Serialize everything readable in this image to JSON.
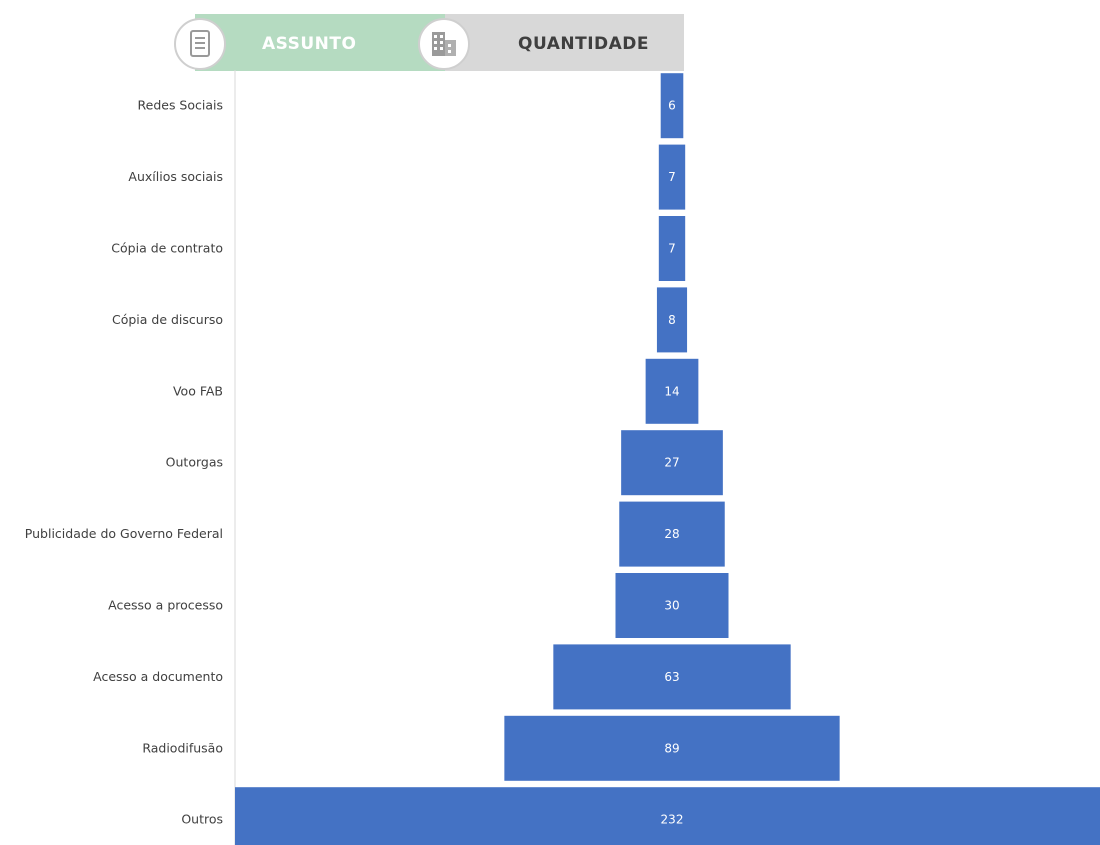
{
  "header": {
    "assunto_label": "ASSUNTO",
    "quantidade_label": "QUANTIDADE",
    "assunto_icon": "document-icon",
    "quantidade_icon": "building-icon",
    "assunto_color": "#b5dbc1",
    "quantidade_color": "#d8d8d8"
  },
  "chart_data": {
    "type": "bar",
    "orientation": "horizontal-centered (funnel)",
    "categories": [
      "Redes Sociais",
      "Auxílios sociais",
      "Cópia de contrato",
      "Cópia de discurso",
      "Voo FAB",
      "Outorgas",
      "Publicidade do Governo Federal",
      "Acesso a processo",
      "Acesso a documento",
      "Radiodifusão",
      "Outros"
    ],
    "values": [
      6,
      7,
      7,
      8,
      14,
      27,
      28,
      30,
      63,
      89,
      232
    ],
    "bar_color": "#4472c4",
    "data_labels": true,
    "grid": false
  }
}
